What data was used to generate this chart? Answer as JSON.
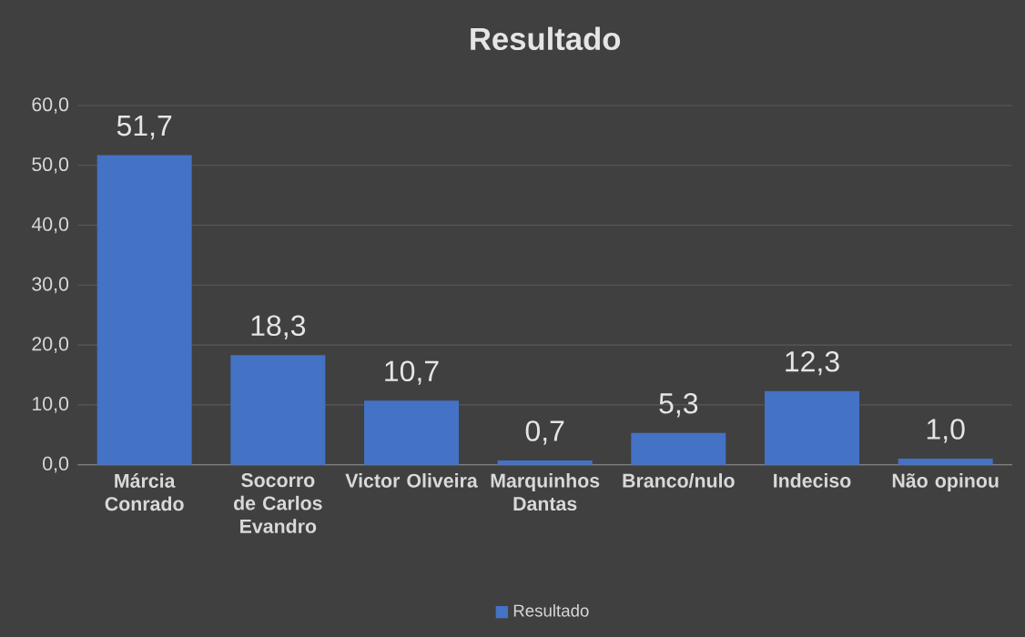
{
  "chart_data": {
    "type": "bar",
    "title": "Resultado",
    "categories": [
      "Márcia Conrado",
      "Socorro de Carlos Evandro",
      "Victor Oliveira",
      "Marquinhos Dantas",
      "Branco/nulo",
      "Indeciso",
      "Não opinou"
    ],
    "series": [
      {
        "name": "Resultado",
        "color": "#4472c4",
        "values": [
          51.7,
          18.3,
          10.7,
          0.7,
          5.3,
          12.3,
          1.0
        ],
        "value_labels": [
          "51,7",
          "18,3",
          "10,7",
          "0,7",
          "5,3",
          "12,3",
          "1,0"
        ]
      }
    ],
    "ylim": [
      0,
      60
    ],
    "yticks": [
      {
        "value": 0,
        "label": "0,0"
      },
      {
        "value": 10,
        "label": "10,0"
      },
      {
        "value": 20,
        "label": "20,0"
      },
      {
        "value": 30,
        "label": "30,0"
      },
      {
        "value": 40,
        "label": "40,0"
      },
      {
        "value": 50,
        "label": "50,0"
      },
      {
        "value": 60,
        "label": "60,0"
      }
    ],
    "grid": "y",
    "legend": "bottom"
  }
}
